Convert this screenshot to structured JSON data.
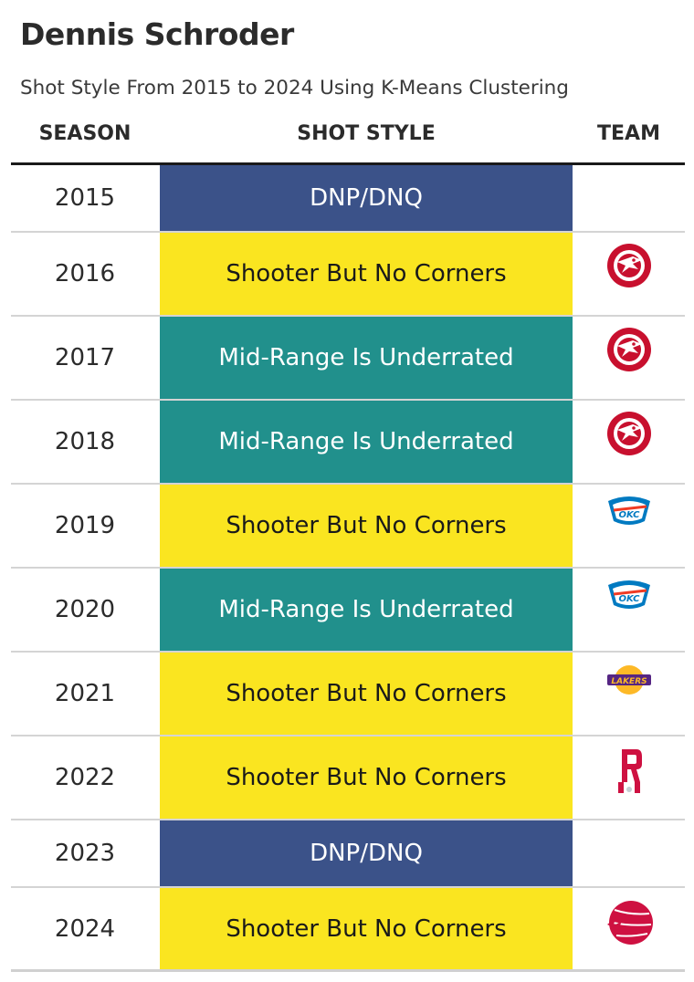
{
  "title": "Dennis Schroder",
  "subtitle": "Shot Style From 2015 to 2024 Using K-Means Clustering",
  "columns": {
    "season": "SEASON",
    "style": "SHOT STYLE",
    "team": "TEAM"
  },
  "style_colors": {
    "DNP/DNQ": {
      "bg": "#3b5289",
      "fg": "#ffffff"
    },
    "Shooter But No Corners": {
      "bg": "#fae520",
      "fg": "#1a1a1a"
    },
    "Mid-Range Is Underrated": {
      "bg": "#21908c",
      "fg": "#ffffff"
    }
  },
  "chart_data": {
    "type": "table",
    "title": "Dennis Schroder",
    "subtitle": "Shot Style From 2015 to 2024 Using K-Means Clustering",
    "rows": [
      {
        "season": "2015",
        "style": "DNP/DNQ",
        "team_logo": ""
      },
      {
        "season": "2016",
        "style": "Shooter But No Corners",
        "team_logo": "hawks-logo-icon"
      },
      {
        "season": "2017",
        "style": "Mid-Range Is Underrated",
        "team_logo": "hawks-logo-icon"
      },
      {
        "season": "2018",
        "style": "Mid-Range Is Underrated",
        "team_logo": "hawks-logo-icon"
      },
      {
        "season": "2019",
        "style": "Shooter But No Corners",
        "team_logo": "thunder-logo-icon"
      },
      {
        "season": "2020",
        "style": "Mid-Range Is Underrated",
        "team_logo": "thunder-logo-icon"
      },
      {
        "season": "2021",
        "style": "Shooter But No Corners",
        "team_logo": "lakers-logo-icon"
      },
      {
        "season": "2022",
        "style": "Shooter But No Corners",
        "team_logo": "rockets-logo-icon"
      },
      {
        "season": "2023",
        "style": "DNP/DNQ",
        "team_logo": ""
      },
      {
        "season": "2024",
        "style": "Shooter But No Corners",
        "team_logo": "raptors-logo-icon"
      }
    ]
  }
}
